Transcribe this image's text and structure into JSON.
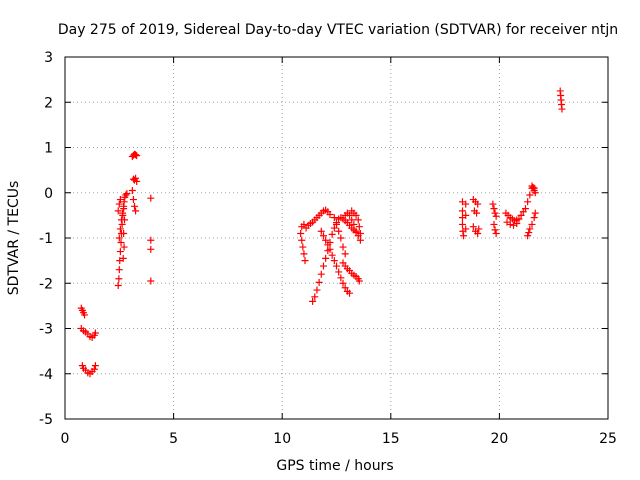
{
  "chart_data": {
    "type": "scatter",
    "title": "Day 275 of 2019, Sidereal Day-to-day VTEC variation (SDTVAR) for receiver ntjn",
    "xlabel": "GPS time / hours",
    "ylabel": "SDTVAR / TECUs",
    "xlim": [
      0,
      25
    ],
    "ylim": [
      -5,
      3
    ],
    "xticks": [
      "0",
      "5",
      "10",
      "15",
      "20",
      "25"
    ],
    "yticks": [
      "-5",
      "-4",
      "-3",
      "-2",
      "-1",
      "0",
      "1",
      "2",
      "3"
    ],
    "grid": true,
    "marker": "+",
    "color": "#ff0000",
    "series": [
      {
        "points": [
          [
            0.75,
            -2.55
          ],
          [
            0.8,
            -2.6
          ],
          [
            0.85,
            -2.65
          ],
          [
            0.9,
            -2.7
          ],
          [
            0.75,
            -3.0
          ],
          [
            0.85,
            -3.05
          ],
          [
            0.95,
            -3.08
          ],
          [
            1.05,
            -3.12
          ],
          [
            1.15,
            -3.18
          ],
          [
            1.25,
            -3.2
          ],
          [
            1.35,
            -3.15
          ],
          [
            1.4,
            -3.1
          ],
          [
            0.8,
            -3.82
          ],
          [
            0.85,
            -3.88
          ],
          [
            0.95,
            -3.92
          ],
          [
            1.05,
            -3.98
          ],
          [
            1.15,
            -4.0
          ],
          [
            1.25,
            -3.95
          ],
          [
            1.35,
            -3.9
          ],
          [
            1.4,
            -3.82
          ],
          [
            2.45,
            -2.05
          ],
          [
            2.48,
            -1.9
          ],
          [
            2.5,
            -1.7
          ],
          [
            2.52,
            -1.5
          ],
          [
            2.55,
            -1.3
          ],
          [
            2.58,
            -1.1
          ],
          [
            2.6,
            -0.9
          ],
          [
            2.63,
            -0.7
          ],
          [
            2.66,
            -0.5
          ],
          [
            2.7,
            -0.35
          ],
          [
            2.72,
            -0.2
          ],
          [
            2.75,
            -0.1
          ],
          [
            2.8,
            -0.05
          ],
          [
            2.85,
            -0.02
          ],
          [
            2.5,
            -1.0
          ],
          [
            2.55,
            -0.8
          ],
          [
            2.6,
            -0.6
          ],
          [
            2.65,
            -0.45
          ],
          [
            2.7,
            -0.3
          ],
          [
            2.45,
            -0.4
          ],
          [
            2.5,
            -0.25
          ],
          [
            2.55,
            -0.15
          ],
          [
            2.7,
            -0.9
          ],
          [
            2.72,
            -1.2
          ],
          [
            2.68,
            -1.45
          ],
          [
            2.74,
            -0.6
          ],
          [
            3.1,
            0.05
          ],
          [
            3.15,
            -0.15
          ],
          [
            3.2,
            -0.3
          ],
          [
            3.25,
            -0.4
          ],
          [
            3.15,
            0.3
          ],
          [
            3.2,
            0.28
          ],
          [
            3.25,
            0.32
          ],
          [
            3.3,
            0.25
          ],
          [
            3.1,
            0.8
          ],
          [
            3.15,
            0.83
          ],
          [
            3.2,
            0.85
          ],
          [
            3.25,
            0.84
          ],
          [
            3.3,
            0.82
          ],
          [
            3.95,
            -0.12
          ],
          [
            3.95,
            -1.05
          ],
          [
            3.95,
            -1.25
          ],
          [
            3.95,
            -1.95
          ],
          [
            10.85,
            -0.9
          ],
          [
            10.9,
            -1.05
          ],
          [
            10.95,
            -1.2
          ],
          [
            11.0,
            -1.35
          ],
          [
            11.05,
            -1.5
          ],
          [
            10.9,
            -0.75
          ],
          [
            11.0,
            -0.7
          ],
          [
            11.1,
            -0.78
          ],
          [
            11.2,
            -0.72
          ],
          [
            11.3,
            -0.68
          ],
          [
            11.4,
            -0.65
          ],
          [
            11.5,
            -0.6
          ],
          [
            11.6,
            -0.55
          ],
          [
            11.7,
            -0.5
          ],
          [
            11.8,
            -0.45
          ],
          [
            11.9,
            -0.4
          ],
          [
            12.0,
            -0.38
          ],
          [
            12.1,
            -0.42
          ],
          [
            12.2,
            -0.48
          ],
          [
            11.4,
            -2.4
          ],
          [
            11.5,
            -2.3
          ],
          [
            11.6,
            -2.15
          ],
          [
            11.7,
            -1.98
          ],
          [
            11.8,
            -1.8
          ],
          [
            11.9,
            -1.62
          ],
          [
            12.0,
            -1.45
          ],
          [
            12.1,
            -1.28
          ],
          [
            12.2,
            -1.1
          ],
          [
            12.3,
            -0.92
          ],
          [
            12.4,
            -0.78
          ],
          [
            12.5,
            -0.66
          ],
          [
            12.6,
            -0.58
          ],
          [
            12.7,
            -0.55
          ],
          [
            12.8,
            -0.58
          ],
          [
            12.9,
            -0.62
          ],
          [
            13.0,
            -0.66
          ],
          [
            13.1,
            -0.72
          ],
          [
            13.2,
            -0.78
          ],
          [
            13.3,
            -0.82
          ],
          [
            13.4,
            -0.88
          ],
          [
            13.5,
            -0.95
          ],
          [
            11.8,
            -0.85
          ],
          [
            11.9,
            -0.95
          ],
          [
            12.0,
            -1.05
          ],
          [
            12.1,
            -1.15
          ],
          [
            12.2,
            -1.25
          ],
          [
            12.3,
            -1.38
          ],
          [
            12.4,
            -1.5
          ],
          [
            12.5,
            -1.62
          ],
          [
            12.6,
            -1.75
          ],
          [
            12.7,
            -1.88
          ],
          [
            12.8,
            -2.0
          ],
          [
            12.9,
            -2.1
          ],
          [
            13.0,
            -2.18
          ],
          [
            13.1,
            -2.22
          ],
          [
            12.4,
            -0.55
          ],
          [
            12.5,
            -0.7
          ],
          [
            12.6,
            -0.85
          ],
          [
            12.7,
            -1.0
          ],
          [
            12.8,
            -1.2
          ],
          [
            12.9,
            -1.35
          ],
          [
            12.9,
            -0.5
          ],
          [
            13.0,
            -0.45
          ],
          [
            13.1,
            -0.5
          ],
          [
            13.2,
            -0.6
          ],
          [
            13.3,
            -0.7
          ],
          [
            13.4,
            -0.85
          ],
          [
            12.8,
            -1.55
          ],
          [
            12.9,
            -1.62
          ],
          [
            13.0,
            -1.68
          ],
          [
            13.1,
            -1.72
          ],
          [
            13.2,
            -1.78
          ],
          [
            13.3,
            -1.82
          ],
          [
            13.4,
            -1.85
          ],
          [
            13.5,
            -1.9
          ],
          [
            13.55,
            -1.95
          ],
          [
            13.4,
            -0.5
          ],
          [
            13.5,
            -0.6
          ],
          [
            13.55,
            -0.75
          ],
          [
            13.6,
            -0.9
          ],
          [
            13.6,
            -1.05
          ],
          [
            13.3,
            -0.45
          ],
          [
            13.2,
            -0.4
          ],
          [
            18.3,
            -0.2
          ],
          [
            18.3,
            -0.4
          ],
          [
            18.3,
            -0.55
          ],
          [
            18.3,
            -0.7
          ],
          [
            18.32,
            -0.85
          ],
          [
            18.35,
            -0.95
          ],
          [
            18.45,
            -0.25
          ],
          [
            18.45,
            -0.5
          ],
          [
            18.45,
            -0.8
          ],
          [
            18.8,
            -0.15
          ],
          [
            18.9,
            -0.2
          ],
          [
            19.0,
            -0.25
          ],
          [
            18.85,
            -0.4
          ],
          [
            18.95,
            -0.45
          ],
          [
            18.8,
            -0.75
          ],
          [
            18.9,
            -0.85
          ],
          [
            19.0,
            -0.9
          ],
          [
            19.05,
            -0.8
          ],
          [
            19.7,
            -0.25
          ],
          [
            19.75,
            -0.35
          ],
          [
            19.8,
            -0.45
          ],
          [
            19.85,
            -0.52
          ],
          [
            19.75,
            -0.7
          ],
          [
            19.8,
            -0.82
          ],
          [
            19.85,
            -0.9
          ],
          [
            20.3,
            -0.45
          ],
          [
            20.4,
            -0.5
          ],
          [
            20.5,
            -0.55
          ],
          [
            20.6,
            -0.58
          ],
          [
            20.7,
            -0.62
          ],
          [
            20.8,
            -0.6
          ],
          [
            20.9,
            -0.58
          ],
          [
            21.0,
            -0.5
          ],
          [
            21.1,
            -0.42
          ],
          [
            21.2,
            -0.35
          ],
          [
            21.3,
            -0.2
          ],
          [
            21.4,
            -0.05
          ],
          [
            21.5,
            0.1
          ],
          [
            21.6,
            0.05
          ],
          [
            20.35,
            -0.65
          ],
          [
            20.5,
            -0.7
          ],
          [
            20.65,
            -0.72
          ],
          [
            20.8,
            -0.68
          ],
          [
            21.3,
            -0.95
          ],
          [
            21.35,
            -0.88
          ],
          [
            21.4,
            -0.8
          ],
          [
            21.5,
            -0.7
          ],
          [
            21.6,
            -0.55
          ],
          [
            21.65,
            -0.45
          ],
          [
            21.5,
            0.15
          ],
          [
            21.55,
            0.12
          ],
          [
            21.6,
            0.1
          ],
          [
            21.65,
            0.0
          ],
          [
            22.8,
            2.25
          ],
          [
            22.82,
            2.15
          ],
          [
            22.84,
            2.05
          ],
          [
            22.86,
            1.95
          ],
          [
            22.88,
            1.85
          ]
        ]
      }
    ]
  }
}
